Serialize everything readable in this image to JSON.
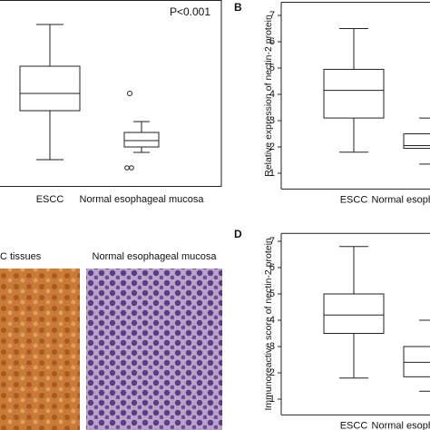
{
  "panel_a": {
    "annotation": "P<0.001",
    "categories": [
      "ESCC",
      "Normal esophageal mucosa"
    ]
  },
  "panel_c": {
    "captions": [
      "C tissues",
      "Normal esophageal mucosa"
    ]
  },
  "chart_data": [
    {
      "type": "box",
      "panel_label": "B",
      "y_label": "Relative expression of nectin-2 protein",
      "categories": [
        "ESCC",
        "Normal esophageal mucosa"
      ],
      "color": "#222222",
      "stats": [
        {
          "whisker_high": 6.5,
          "q3": 4.95,
          "median": 4.15,
          "q1": 3.1,
          "whisker_low": 1.8
        },
        {
          "whisker_high": 3.1,
          "q3": 2.5,
          "median": 2.05,
          "q1": 1.95,
          "whisker_low": 1.35
        }
      ],
      "ylim": [
        0.4,
        7.5
      ],
      "yticks": [
        1,
        2,
        3,
        4,
        5,
        6,
        7
      ]
    },
    {
      "type": "box",
      "panel_label": "D",
      "y_label": "Immunoreactive score of nectin-2 protein",
      "categories": [
        "ESCC",
        "Normal esophageal mucosa"
      ],
      "color": "#222222",
      "stats": [
        {
          "whisker_high": 6.8,
          "q3": 5.0,
          "median": 4.2,
          "q1": 3.5,
          "whisker_low": 1.8
        },
        {
          "whisker_high": 4.0,
          "q3": 3.0,
          "median": 2.4,
          "q1": 1.85,
          "whisker_low": 1.3
        }
      ],
      "ylim": [
        0.4,
        7.3
      ],
      "yticks": [
        1,
        2,
        3,
        4,
        5,
        6,
        7
      ]
    }
  ]
}
